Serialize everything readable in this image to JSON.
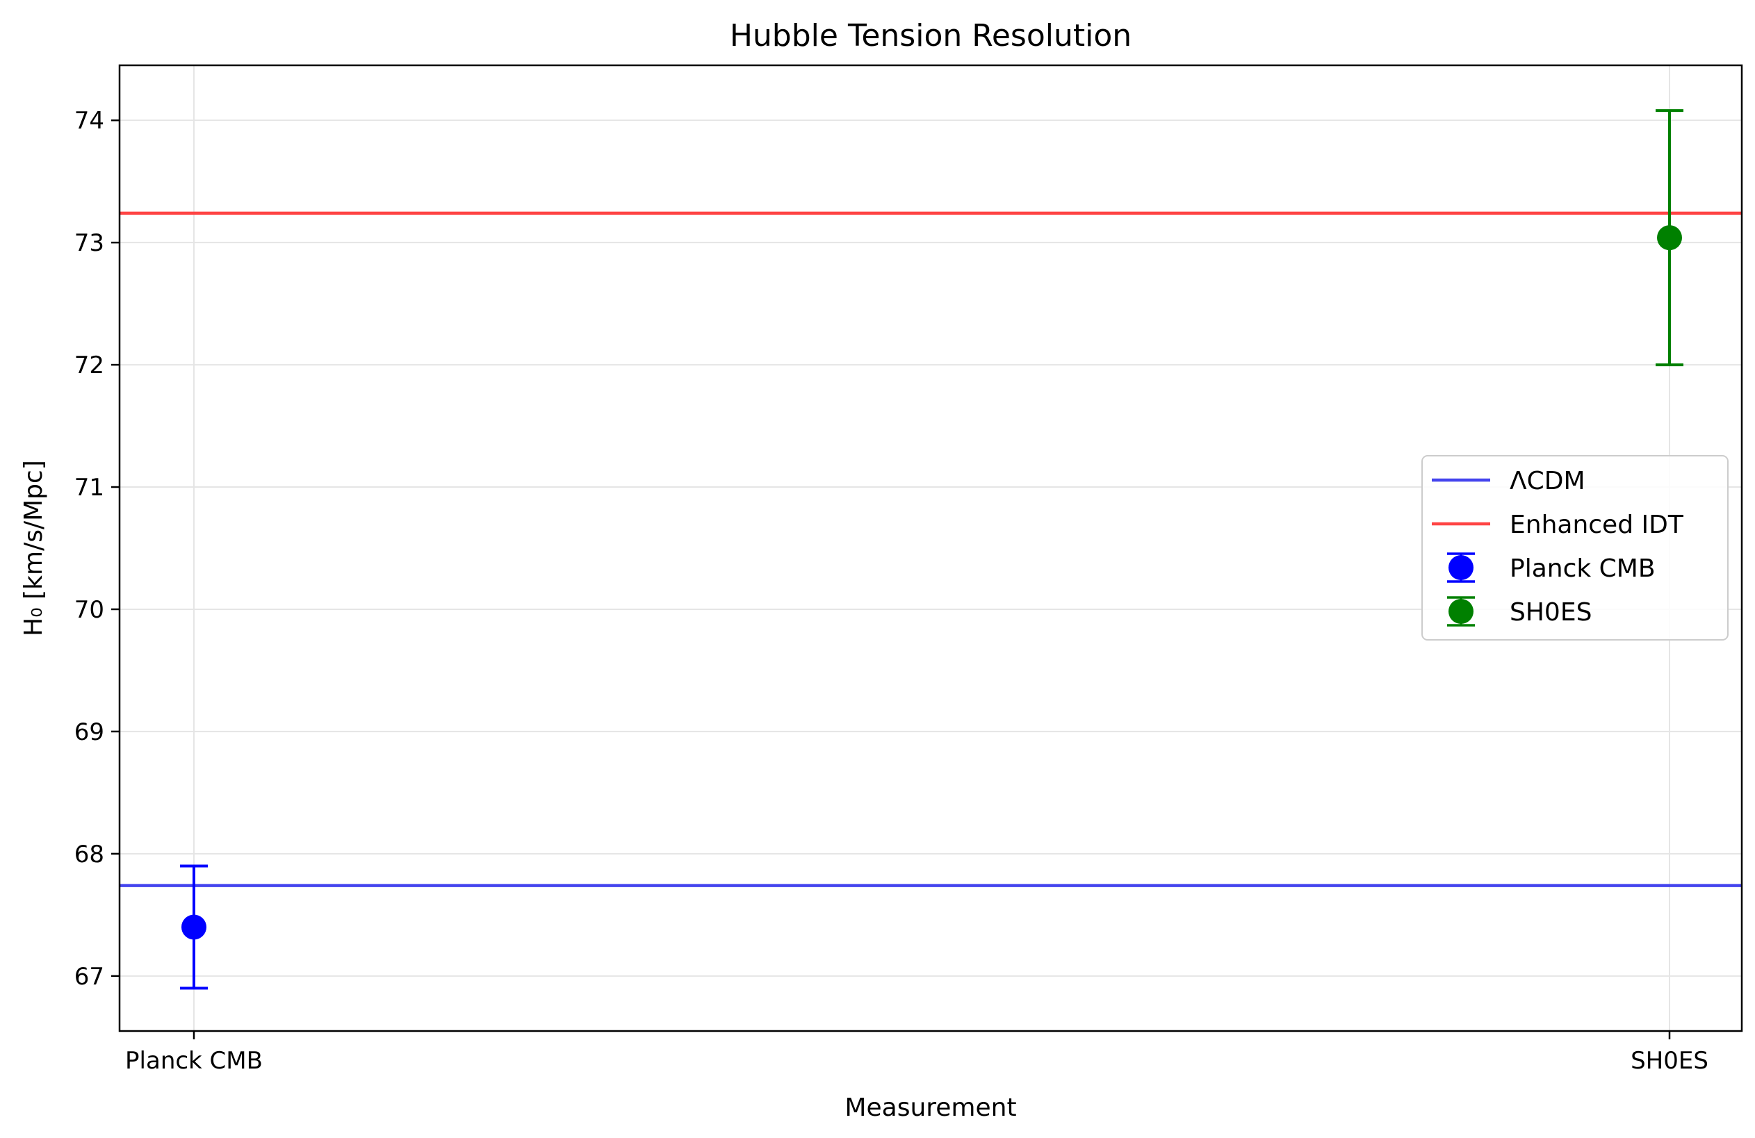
{
  "chart_data": {
    "type": "scatter",
    "title": "Hubble Tension Resolution",
    "xlabel": "Measurement",
    "ylabel": "H₀ [km/s/Mpc]",
    "categories": [
      "Planck CMB",
      "SH0ES"
    ],
    "ylim": [
      66.55,
      74.45
    ],
    "yticks": [
      67,
      68,
      69,
      70,
      71,
      72,
      73,
      74
    ],
    "grid": true,
    "legend_position": "center-right",
    "series": [
      {
        "name": "Planck CMB",
        "kind": "errorbar",
        "category": "Planck CMB",
        "value": 67.4,
        "error": 0.5,
        "color": "#0000ff"
      },
      {
        "name": "SH0ES",
        "kind": "errorbar",
        "category": "SH0ES",
        "value": 73.04,
        "error": 1.04,
        "color": "#008000"
      }
    ],
    "reference_lines": [
      {
        "name": "ΛCDM",
        "value": 67.74,
        "color": "#4444ee"
      },
      {
        "name": "Enhanced IDT",
        "value": 73.24,
        "color": "#ff4444"
      }
    ],
    "legend": [
      "ΛCDM",
      "Enhanced IDT",
      "Planck CMB",
      "SH0ES"
    ]
  }
}
